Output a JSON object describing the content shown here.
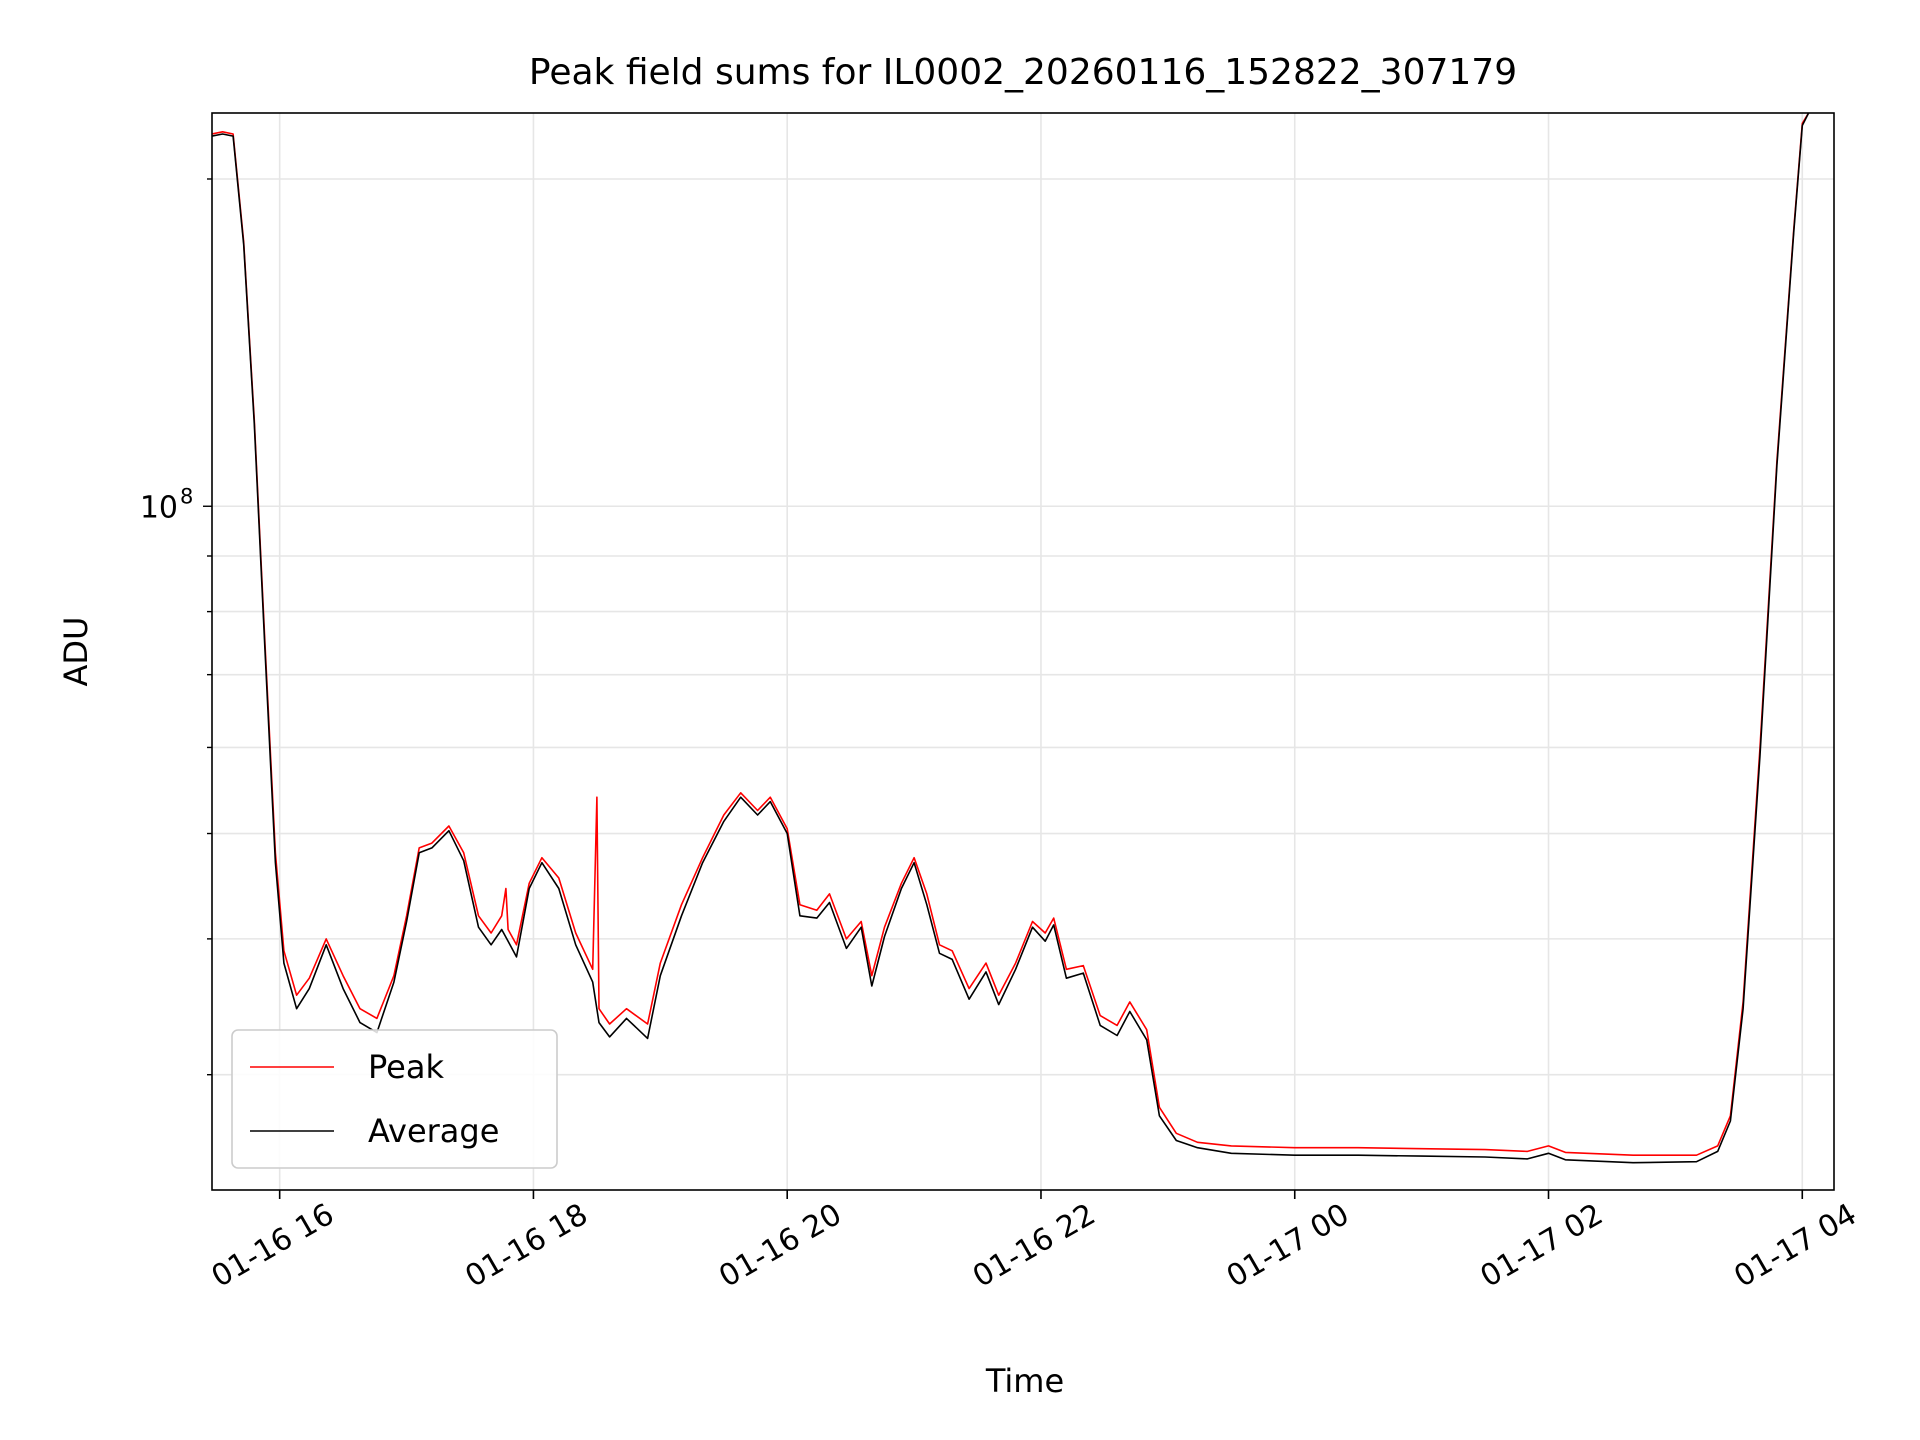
{
  "chart_data": {
    "type": "line",
    "title": "Peak field sums for IL0002_20260116_152822_307179",
    "xlabel": "Time",
    "ylabel": "ADU",
    "xlim": [
      "2026-01-16 15:28",
      "2026-01-17 04:15"
    ],
    "ylim": [
      23500000,
      230000000
    ],
    "yscale": "log",
    "grid": true,
    "legend": "lower-left",
    "x_ticks": [
      {
        "t": "2026-01-16 16:00",
        "label": "01-16 16"
      },
      {
        "t": "2026-01-16 18:00",
        "label": "01-16 18"
      },
      {
        "t": "2026-01-16 20:00",
        "label": "01-16 20"
      },
      {
        "t": "2026-01-16 22:00",
        "label": "01-16 22"
      },
      {
        "t": "2026-01-17 00:00",
        "label": "01-17 00"
      },
      {
        "t": "2026-01-17 02:00",
        "label": "01-17 02"
      },
      {
        "t": "2026-01-17 04:00",
        "label": "01-17 04"
      }
    ],
    "y_ticks": [
      {
        "value": 100000000,
        "label": "10",
        "exp": "8"
      }
    ],
    "series": [
      {
        "name": "Peak",
        "color": "#ff0000",
        "points": [
          [
            "2026-01-16 15:28",
            220000000
          ],
          [
            "2026-01-16 15:33",
            221000000
          ],
          [
            "2026-01-16 15:38",
            220000000
          ],
          [
            "2026-01-16 15:43",
            175000000
          ],
          [
            "2026-01-16 15:48",
            120000000
          ],
          [
            "2026-01-16 15:53",
            75000000
          ],
          [
            "2026-01-16 15:58",
            48000000
          ],
          [
            "2026-01-16 16:02",
            39000000
          ],
          [
            "2026-01-16 16:08",
            35500000
          ],
          [
            "2026-01-16 16:14",
            36800000
          ],
          [
            "2026-01-16 16:22",
            40000000
          ],
          [
            "2026-01-16 16:30",
            37000000
          ],
          [
            "2026-01-16 16:38",
            34500000
          ],
          [
            "2026-01-16 16:46",
            33800000
          ],
          [
            "2026-01-16 16:54",
            37000000
          ],
          [
            "2026-01-16 17:00",
            42000000
          ],
          [
            "2026-01-16 17:06",
            48500000
          ],
          [
            "2026-01-16 17:12",
            49000000
          ],
          [
            "2026-01-16 17:20",
            50800000
          ],
          [
            "2026-01-16 17:27",
            48000000
          ],
          [
            "2026-01-16 17:34",
            42000000
          ],
          [
            "2026-01-16 17:40",
            40500000
          ],
          [
            "2026-01-16 17:45",
            42000000
          ],
          [
            "2026-01-16 17:47",
            44500000
          ],
          [
            "2026-01-16 17:48",
            40800000
          ],
          [
            "2026-01-16 17:52",
            39500000
          ],
          [
            "2026-01-16 17:58",
            45000000
          ],
          [
            "2026-01-16 18:04",
            47500000
          ],
          [
            "2026-01-16 18:12",
            45500000
          ],
          [
            "2026-01-16 18:20",
            40500000
          ],
          [
            "2026-01-16 18:28",
            37500000
          ],
          [
            "2026-01-16 18:30",
            54000000
          ],
          [
            "2026-01-16 18:31",
            34500000
          ],
          [
            "2026-01-16 18:36",
            33400000
          ],
          [
            "2026-01-16 18:44",
            34500000
          ],
          [
            "2026-01-16 18:54",
            33400000
          ],
          [
            "2026-01-16 19:00",
            38000000
          ],
          [
            "2026-01-16 19:10",
            43000000
          ],
          [
            "2026-01-16 19:20",
            47500000
          ],
          [
            "2026-01-16 19:30",
            52000000
          ],
          [
            "2026-01-16 19:38",
            54500000
          ],
          [
            "2026-01-16 19:46",
            52500000
          ],
          [
            "2026-01-16 19:52",
            54000000
          ],
          [
            "2026-01-16 20:00",
            50500000
          ],
          [
            "2026-01-16 20:06",
            43000000
          ],
          [
            "2026-01-16 20:14",
            42500000
          ],
          [
            "2026-01-16 20:20",
            44000000
          ],
          [
            "2026-01-16 20:28",
            40000000
          ],
          [
            "2026-01-16 20:35",
            41500000
          ],
          [
            "2026-01-16 20:40",
            37000000
          ],
          [
            "2026-01-16 20:46",
            41000000
          ],
          [
            "2026-01-16 20:54",
            45000000
          ],
          [
            "2026-01-16 21:00",
            47500000
          ],
          [
            "2026-01-16 21:06",
            44000000
          ],
          [
            "2026-01-16 21:12",
            39500000
          ],
          [
            "2026-01-16 21:18",
            39000000
          ],
          [
            "2026-01-16 21:26",
            36000000
          ],
          [
            "2026-01-16 21:34",
            38000000
          ],
          [
            "2026-01-16 21:40",
            35500000
          ],
          [
            "2026-01-16 21:48",
            38000000
          ],
          [
            "2026-01-16 21:56",
            41500000
          ],
          [
            "2026-01-16 22:02",
            40500000
          ],
          [
            "2026-01-16 22:06",
            41800000
          ],
          [
            "2026-01-16 22:12",
            37500000
          ],
          [
            "2026-01-16 22:20",
            37800000
          ],
          [
            "2026-01-16 22:28",
            34000000
          ],
          [
            "2026-01-16 22:36",
            33300000
          ],
          [
            "2026-01-16 22:42",
            35000000
          ],
          [
            "2026-01-16 22:50",
            33000000
          ],
          [
            "2026-01-16 22:56",
            28000000
          ],
          [
            "2026-01-16 23:04",
            26500000
          ],
          [
            "2026-01-16 23:14",
            26000000
          ],
          [
            "2026-01-16 23:30",
            25800000
          ],
          [
            "2026-01-17 00:00",
            25700000
          ],
          [
            "2026-01-17 00:30",
            25700000
          ],
          [
            "2026-01-17 01:00",
            25650000
          ],
          [
            "2026-01-17 01:30",
            25600000
          ],
          [
            "2026-01-17 01:50",
            25500000
          ],
          [
            "2026-01-17 02:00",
            25800000
          ],
          [
            "2026-01-17 02:08",
            25450000
          ],
          [
            "2026-01-17 02:40",
            25300000
          ],
          [
            "2026-01-17 03:10",
            25300000
          ],
          [
            "2026-01-17 03:20",
            25800000
          ],
          [
            "2026-01-17 03:26",
            27500000
          ],
          [
            "2026-01-17 03:32",
            35000000
          ],
          [
            "2026-01-17 03:40",
            60000000
          ],
          [
            "2026-01-17 03:48",
            110000000
          ],
          [
            "2026-01-17 03:56",
            180000000
          ],
          [
            "2026-01-17 04:00",
            225000000
          ],
          [
            "2026-01-17 04:03",
            230000000
          ]
        ]
      },
      {
        "name": "Average",
        "color": "#000000",
        "points": [
          [
            "2026-01-16 15:28",
            219000000
          ],
          [
            "2026-01-16 15:33",
            220000000
          ],
          [
            "2026-01-16 15:38",
            219000000
          ],
          [
            "2026-01-16 15:43",
            174000000
          ],
          [
            "2026-01-16 15:48",
            119000000
          ],
          [
            "2026-01-16 15:53",
            74000000
          ],
          [
            "2026-01-16 15:58",
            47000000
          ],
          [
            "2026-01-16 16:02",
            38000000
          ],
          [
            "2026-01-16 16:08",
            34500000
          ],
          [
            "2026-01-16 16:14",
            36000000
          ],
          [
            "2026-01-16 16:22",
            39500000
          ],
          [
            "2026-01-16 16:30",
            36000000
          ],
          [
            "2026-01-16 16:38",
            33500000
          ],
          [
            "2026-01-16 16:46",
            32800000
          ],
          [
            "2026-01-16 16:54",
            36500000
          ],
          [
            "2026-01-16 17:00",
            41500000
          ],
          [
            "2026-01-16 17:06",
            48000000
          ],
          [
            "2026-01-16 17:12",
            48500000
          ],
          [
            "2026-01-16 17:20",
            50300000
          ],
          [
            "2026-01-16 17:27",
            47200000
          ],
          [
            "2026-01-16 17:34",
            41000000
          ],
          [
            "2026-01-16 17:40",
            39500000
          ],
          [
            "2026-01-16 17:45",
            40800000
          ],
          [
            "2026-01-16 17:48",
            39800000
          ],
          [
            "2026-01-16 17:52",
            38500000
          ],
          [
            "2026-01-16 17:58",
            44500000
          ],
          [
            "2026-01-16 18:04",
            47000000
          ],
          [
            "2026-01-16 18:12",
            44500000
          ],
          [
            "2026-01-16 18:20",
            39500000
          ],
          [
            "2026-01-16 18:28",
            36500000
          ],
          [
            "2026-01-16 18:31",
            33500000
          ],
          [
            "2026-01-16 18:36",
            32500000
          ],
          [
            "2026-01-16 18:44",
            33800000
          ],
          [
            "2026-01-16 18:54",
            32400000
          ],
          [
            "2026-01-16 19:00",
            37000000
          ],
          [
            "2026-01-16 19:10",
            42000000
          ],
          [
            "2026-01-16 19:20",
            47000000
          ],
          [
            "2026-01-16 19:30",
            51300000
          ],
          [
            "2026-01-16 19:38",
            54000000
          ],
          [
            "2026-01-16 19:46",
            52000000
          ],
          [
            "2026-01-16 19:52",
            53500000
          ],
          [
            "2026-01-16 20:00",
            50000000
          ],
          [
            "2026-01-16 20:06",
            42000000
          ],
          [
            "2026-01-16 20:14",
            41800000
          ],
          [
            "2026-01-16 20:20",
            43200000
          ],
          [
            "2026-01-16 20:28",
            39200000
          ],
          [
            "2026-01-16 20:35",
            41000000
          ],
          [
            "2026-01-16 20:40",
            36200000
          ],
          [
            "2026-01-16 20:46",
            40200000
          ],
          [
            "2026-01-16 20:54",
            44500000
          ],
          [
            "2026-01-16 21:00",
            47000000
          ],
          [
            "2026-01-16 21:06",
            43000000
          ],
          [
            "2026-01-16 21:12",
            38800000
          ],
          [
            "2026-01-16 21:18",
            38300000
          ],
          [
            "2026-01-16 21:26",
            35200000
          ],
          [
            "2026-01-16 21:34",
            37300000
          ],
          [
            "2026-01-16 21:40",
            34800000
          ],
          [
            "2026-01-16 21:48",
            37500000
          ],
          [
            "2026-01-16 21:56",
            41000000
          ],
          [
            "2026-01-16 22:02",
            39800000
          ],
          [
            "2026-01-16 22:06",
            41200000
          ],
          [
            "2026-01-16 22:12",
            36800000
          ],
          [
            "2026-01-16 22:20",
            37200000
          ],
          [
            "2026-01-16 22:28",
            33300000
          ],
          [
            "2026-01-16 22:36",
            32600000
          ],
          [
            "2026-01-16 22:42",
            34300000
          ],
          [
            "2026-01-16 22:50",
            32300000
          ],
          [
            "2026-01-16 22:56",
            27500000
          ],
          [
            "2026-01-16 23:04",
            26100000
          ],
          [
            "2026-01-16 23:14",
            25700000
          ],
          [
            "2026-01-16 23:30",
            25400000
          ],
          [
            "2026-01-17 00:00",
            25300000
          ],
          [
            "2026-01-17 00:30",
            25300000
          ],
          [
            "2026-01-17 01:00",
            25250000
          ],
          [
            "2026-01-17 01:30",
            25200000
          ],
          [
            "2026-01-17 01:50",
            25100000
          ],
          [
            "2026-01-17 02:00",
            25400000
          ],
          [
            "2026-01-17 02:08",
            25050000
          ],
          [
            "2026-01-17 02:40",
            24900000
          ],
          [
            "2026-01-17 03:10",
            24950000
          ],
          [
            "2026-01-17 03:20",
            25500000
          ],
          [
            "2026-01-17 03:26",
            27200000
          ],
          [
            "2026-01-17 03:32",
            34500000
          ],
          [
            "2026-01-17 03:40",
            59000000
          ],
          [
            "2026-01-17 03:48",
            109000000
          ],
          [
            "2026-01-17 03:56",
            179000000
          ],
          [
            "2026-01-17 04:00",
            224000000
          ],
          [
            "2026-01-17 04:03",
            230000000
          ]
        ]
      }
    ]
  }
}
